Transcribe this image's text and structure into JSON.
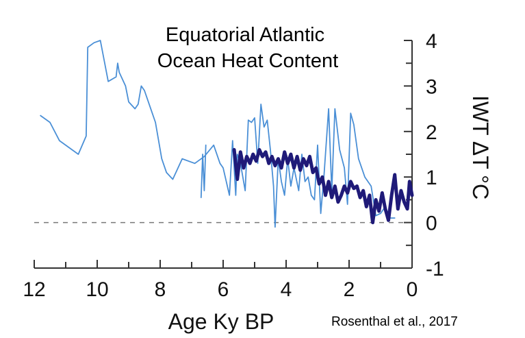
{
  "chart_data": {
    "type": "line",
    "title": [
      "Equatorial  Atlantic",
      "Ocean Heat Content"
    ],
    "xlabel": "Age Ky BP",
    "ylabel": "IWT ΔT °C",
    "credit": "Rosenthal et al., 2017",
    "x_reversed": true,
    "xlim": [
      12,
      0
    ],
    "ylim": [
      -1,
      4
    ],
    "x_ticks": [
      12,
      10,
      8,
      6,
      4,
      2,
      0
    ],
    "y_ticks": [
      4,
      3,
      2,
      1,
      0,
      -1
    ],
    "reference_line": {
      "y": 0,
      "style": "dashed",
      "color": "#777777"
    },
    "colors": {
      "thin": "#4a8fd6",
      "thick": "#1f1a78",
      "axis": "#333333"
    },
    "series": [
      {
        "width": "thin",
        "points": [
          [
            11.8,
            2.35
          ],
          [
            11.5,
            2.2
          ],
          [
            11.2,
            1.8
          ],
          [
            10.8,
            1.6
          ],
          [
            10.6,
            1.5
          ],
          [
            10.35,
            1.9
          ],
          [
            10.3,
            3.85
          ],
          [
            10.1,
            3.95
          ],
          [
            9.9,
            4.0
          ],
          [
            9.65,
            3.1
          ],
          [
            9.4,
            3.2
          ],
          [
            9.35,
            3.5
          ],
          [
            9.3,
            3.3
          ],
          [
            9.1,
            3.0
          ],
          [
            9.0,
            2.65
          ],
          [
            8.8,
            2.5
          ],
          [
            8.7,
            2.6
          ],
          [
            8.6,
            3.0
          ],
          [
            8.5,
            2.9
          ],
          [
            8.3,
            2.5
          ],
          [
            8.15,
            2.2
          ],
          [
            7.95,
            1.4
          ],
          [
            7.8,
            1.1
          ],
          [
            7.6,
            0.95
          ],
          [
            7.3,
            1.4
          ],
          [
            6.9,
            1.3
          ],
          [
            6.6,
            1.45
          ],
          [
            6.3,
            1.7
          ],
          [
            6.1,
            1.3
          ],
          [
            6.0,
            1.2
          ],
          [
            5.8,
            0.6
          ],
          [
            5.7,
            1.8
          ],
          [
            5.6,
            0.6
          ],
          [
            5.55,
            1.5
          ],
          [
            5.45,
            1.3
          ],
          [
            5.3,
            0.7
          ],
          [
            5.2,
            2.25
          ],
          [
            5.1,
            2.2
          ],
          [
            5.0,
            2.3
          ],
          [
            4.9,
            1.3
          ],
          [
            4.8,
            2.6
          ],
          [
            4.7,
            2.1
          ],
          [
            4.6,
            2.25
          ],
          [
            4.5,
            1.6
          ],
          [
            4.4,
            0.8
          ],
          [
            4.35,
            -0.1
          ],
          [
            4.25,
            1.4
          ],
          [
            4.15,
            0.9
          ],
          [
            4.05,
            0.6
          ],
          [
            3.95,
            1.4
          ],
          [
            3.85,
            0.8
          ],
          [
            3.75,
            1.2
          ],
          [
            3.6,
            0.7
          ],
          [
            3.5,
            1.5
          ],
          [
            3.4,
            0.9
          ],
          [
            3.3,
            1.0
          ],
          [
            3.2,
            0.6
          ],
          [
            3.1,
            0.5
          ],
          [
            3.0,
            1.7
          ],
          [
            2.9,
            0.2
          ],
          [
            2.8,
            1.0
          ],
          [
            2.65,
            2.5
          ],
          [
            2.55,
            0.7
          ],
          [
            2.45,
            2.5
          ],
          [
            2.3,
            1.6
          ],
          [
            2.15,
            1.2
          ],
          [
            2.05,
            0.4
          ],
          [
            1.95,
            2.4
          ],
          [
            1.85,
            2.15
          ],
          [
            1.7,
            1.4
          ],
          [
            1.5,
            1.0
          ],
          [
            1.3,
            0.8
          ],
          [
            1.15,
            0.15
          ],
          [
            1.0,
            0.2
          ],
          [
            0.85,
            0.35
          ],
          [
            0.7,
            0.1
          ],
          [
            0.55,
            0.1
          ]
        ]
      },
      {
        "width": "thin",
        "points": [
          [
            6.7,
            0.55
          ],
          [
            6.65,
            1.5
          ],
          [
            6.6,
            0.7
          ],
          [
            6.55,
            1.7
          ]
        ]
      },
      {
        "width": "thick",
        "points": [
          [
            5.65,
            1.6
          ],
          [
            5.55,
            0.95
          ],
          [
            5.45,
            1.55
          ],
          [
            5.35,
            1.2
          ],
          [
            5.25,
            1.45
          ],
          [
            5.15,
            1.3
          ],
          [
            5.05,
            1.5
          ],
          [
            4.95,
            1.35
          ],
          [
            4.85,
            1.6
          ],
          [
            4.75,
            1.45
          ],
          [
            4.65,
            1.55
          ],
          [
            4.55,
            1.3
          ],
          [
            4.45,
            1.45
          ],
          [
            4.35,
            1.25
          ],
          [
            4.25,
            1.4
          ],
          [
            4.15,
            1.2
          ],
          [
            4.05,
            1.55
          ],
          [
            3.95,
            1.3
          ],
          [
            3.85,
            1.5
          ],
          [
            3.75,
            1.2
          ],
          [
            3.65,
            1.45
          ],
          [
            3.55,
            1.15
          ],
          [
            3.45,
            1.4
          ],
          [
            3.35,
            1.25
          ],
          [
            3.25,
            1.45
          ],
          [
            3.15,
            1.1
          ],
          [
            3.05,
            1.2
          ],
          [
            2.95,
            0.85
          ],
          [
            2.85,
            1.0
          ],
          [
            2.75,
            0.6
          ],
          [
            2.65,
            0.9
          ],
          [
            2.55,
            0.55
          ],
          [
            2.45,
            0.8
          ],
          [
            2.35,
            0.45
          ],
          [
            2.25,
            0.6
          ],
          [
            2.15,
            0.8
          ],
          [
            2.05,
            0.65
          ],
          [
            1.95,
            0.9
          ],
          [
            1.85,
            0.75
          ],
          [
            1.75,
            0.8
          ],
          [
            1.65,
            0.55
          ],
          [
            1.55,
            0.7
          ],
          [
            1.45,
            0.35
          ],
          [
            1.35,
            0.6
          ],
          [
            1.25,
            0.0
          ],
          [
            1.15,
            0.5
          ],
          [
            1.05,
            0.25
          ],
          [
            0.95,
            0.65
          ],
          [
            0.85,
            0.3
          ],
          [
            0.75,
            0.05
          ],
          [
            0.65,
            0.6
          ],
          [
            0.55,
            1.05
          ],
          [
            0.45,
            0.3
          ],
          [
            0.35,
            0.7
          ],
          [
            0.25,
            0.45
          ],
          [
            0.15,
            0.3
          ],
          [
            0.08,
            0.9
          ],
          [
            0.0,
            0.6
          ]
        ]
      }
    ]
  }
}
